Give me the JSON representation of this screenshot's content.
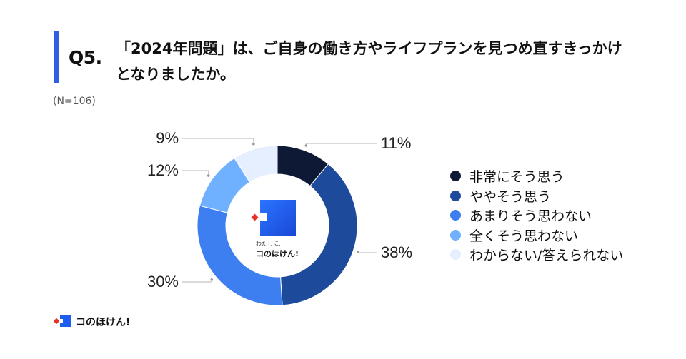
{
  "header": {
    "question_number": "Q5.",
    "question_line1": "「2024年問題」は、ご自身の働き方やライフプランを見つめ直すきっかけ",
    "question_line2": "となりましたか。",
    "sample_size": "(N=106)"
  },
  "chart_data": {
    "type": "pie",
    "donut": true,
    "start": "12 o'clock",
    "direction": "clockwise",
    "categories": [
      "非常にそう思う",
      "ややそう思う",
      "あまりそう思わない",
      "全くそう思わない",
      "わからない/答えられない"
    ],
    "values": [
      11,
      38,
      30,
      12,
      9
    ],
    "labels": [
      "11%",
      "38%",
      "30%",
      "12%",
      "9%"
    ],
    "unit": "%",
    "colors": [
      "#0e1a35",
      "#1e4a9b",
      "#3d7ff0",
      "#6fb0ff",
      "#e6efff"
    ],
    "legend_placement": "right"
  },
  "center_logo": {
    "tagline": "わたしに、",
    "brand": "コのほけん!"
  },
  "footer": {
    "brand": "コのほけん!"
  },
  "colors": {
    "accent": "#2f5fe0",
    "logo_blue": "#1f5cf0",
    "logo_red": "#e6322a"
  }
}
